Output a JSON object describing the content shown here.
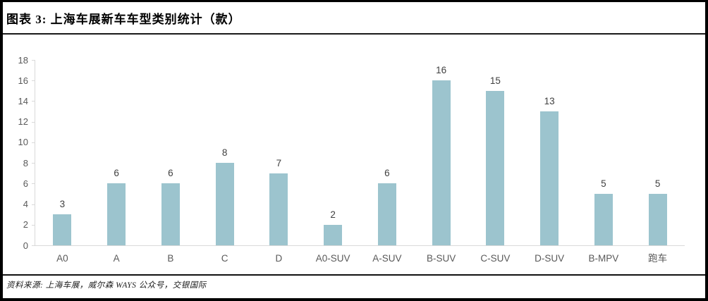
{
  "header": {
    "title": "图表 3: 上海车展新车车型类别统计（款）"
  },
  "footer": {
    "source": "资料来源: 上海车展，威尔森 WAYS 公众号，交银国际"
  },
  "chart_data": {
    "type": "bar",
    "title": "图表 3: 上海车展新车车型类别统计（款）",
    "categories": [
      "A0",
      "A",
      "B",
      "C",
      "D",
      "A0-SUV",
      "A-SUV",
      "B-SUV",
      "C-SUV",
      "D-SUV",
      "B-MPV",
      "跑车"
    ],
    "values": [
      3,
      6,
      6,
      8,
      7,
      2,
      6,
      16,
      15,
      13,
      5,
      5
    ],
    "xlabel": "",
    "ylabel": "",
    "ylim": [
      0,
      18
    ],
    "yticks": [
      0,
      2,
      4,
      6,
      8,
      10,
      12,
      14,
      16,
      18
    ],
    "grid": false,
    "legend": "none",
    "data_labels": true,
    "bar_color": "#9cc4ce"
  },
  "colors": {
    "bar": "#9cc4ce",
    "axis_line": "#d9d9d9",
    "tick_label": "#595959",
    "value_label": "#404040",
    "frame_border": "#000000",
    "background": "#ffffff"
  }
}
